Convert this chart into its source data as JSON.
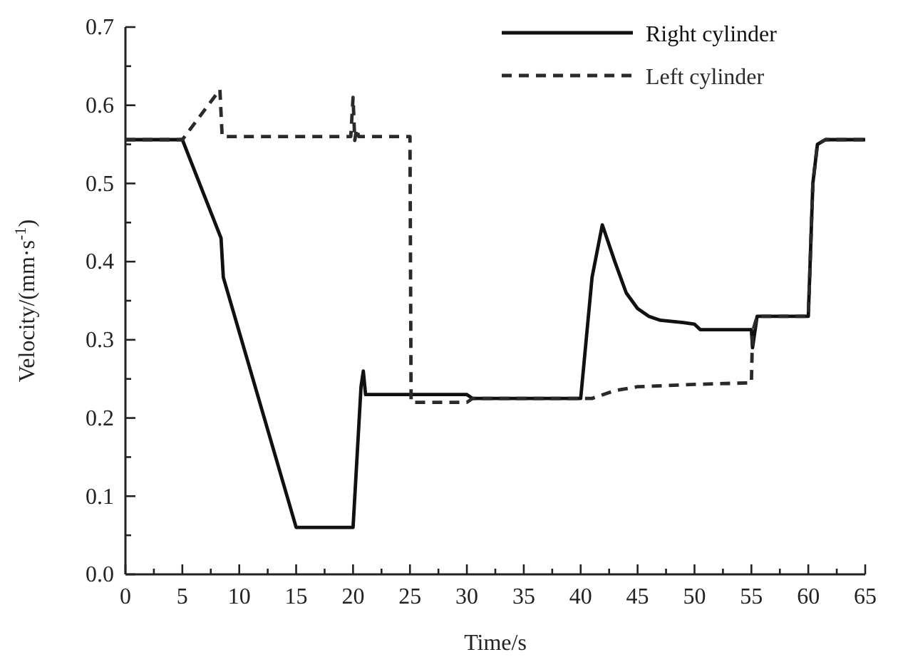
{
  "chart_data": {
    "type": "line",
    "xlabel": "Time/s",
    "ylabel": "Velocity/(mm·s$^{-1}$)",
    "xlim": [
      0,
      65
    ],
    "ylim": [
      0,
      0.7
    ],
    "xticks": [
      0,
      {
        "value": 2.5,
        "label": null
      },
      5,
      {
        "value": 7.5,
        "label": null
      },
      10,
      {
        "value": 12.5,
        "label": null
      },
      15,
      {
        "value": 17.5,
        "label": null
      },
      20,
      {
        "value": 22.5,
        "label": null
      },
      25,
      {
        "value": 27.5,
        "label": null
      },
      30,
      {
        "value": 32.5,
        "label": null
      },
      35,
      {
        "value": 37.5,
        "label": null
      },
      40,
      {
        "value": 42.5,
        "label": null
      },
      45,
      {
        "value": 47.5,
        "label": null
      },
      50,
      {
        "value": 52.5,
        "label": null
      },
      55,
      {
        "value": 57.5,
        "label": null
      },
      60,
      {
        "value": 62.5,
        "label": null
      },
      65
    ],
    "yticks": [
      {
        "value": 0,
        "label": "0.0"
      },
      {
        "value": 0.05,
        "label": null
      },
      0.1,
      {
        "value": 0.15,
        "label": null
      },
      0.2,
      {
        "value": 0.25,
        "label": null
      },
      0.3,
      {
        "value": 0.35,
        "label": null
      },
      0.4,
      {
        "value": 0.45,
        "label": null
      },
      0.5,
      {
        "value": 0.55,
        "label": null
      },
      0.6,
      {
        "value": 0.65,
        "label": null
      },
      0.7
    ],
    "grid": false,
    "legend": "top right",
    "series": [
      {
        "name": "Right cylinder",
        "color": "#111111",
        "line_style": "solid",
        "x": [
          0,
          5,
          8.4,
          8.6,
          15,
          20,
          20.7,
          20.9,
          21.1,
          21.3,
          30,
          30.5,
          40,
          41,
          41.9,
          43,
          44,
          45,
          46,
          47,
          49,
          50,
          50.5,
          55,
          55.1,
          55.5,
          60,
          60.4,
          60.8,
          61.5,
          65
        ],
        "values": [
          0.556,
          0.556,
          0.43,
          0.38,
          0.06,
          0.06,
          0.24,
          0.26,
          0.23,
          0.23,
          0.23,
          0.225,
          0.225,
          0.38,
          0.447,
          0.4,
          0.36,
          0.34,
          0.33,
          0.325,
          0.322,
          0.32,
          0.313,
          0.313,
          0.29,
          0.33,
          0.33,
          0.5,
          0.55,
          0.556,
          0.556
        ]
      },
      {
        "name": "Left cylinder",
        "color": "#2a2a2a",
        "line_style": "dashed",
        "x": [
          0,
          5,
          8.3,
          8.5,
          19.8,
          20,
          20.15,
          20.3,
          20.5,
          25,
          25.1,
          30,
          30.5,
          40,
          41,
          43,
          45,
          50,
          55,
          55.1,
          55.5,
          60,
          60.4,
          60.8,
          61.5,
          65
        ],
        "values": [
          0.556,
          0.556,
          0.62,
          0.56,
          0.56,
          0.61,
          0.555,
          0.57,
          0.56,
          0.56,
          0.22,
          0.22,
          0.225,
          0.225,
          0.225,
          0.235,
          0.24,
          0.243,
          0.245,
          0.31,
          0.33,
          0.33,
          0.5,
          0.55,
          0.556,
          0.556
        ]
      }
    ]
  }
}
